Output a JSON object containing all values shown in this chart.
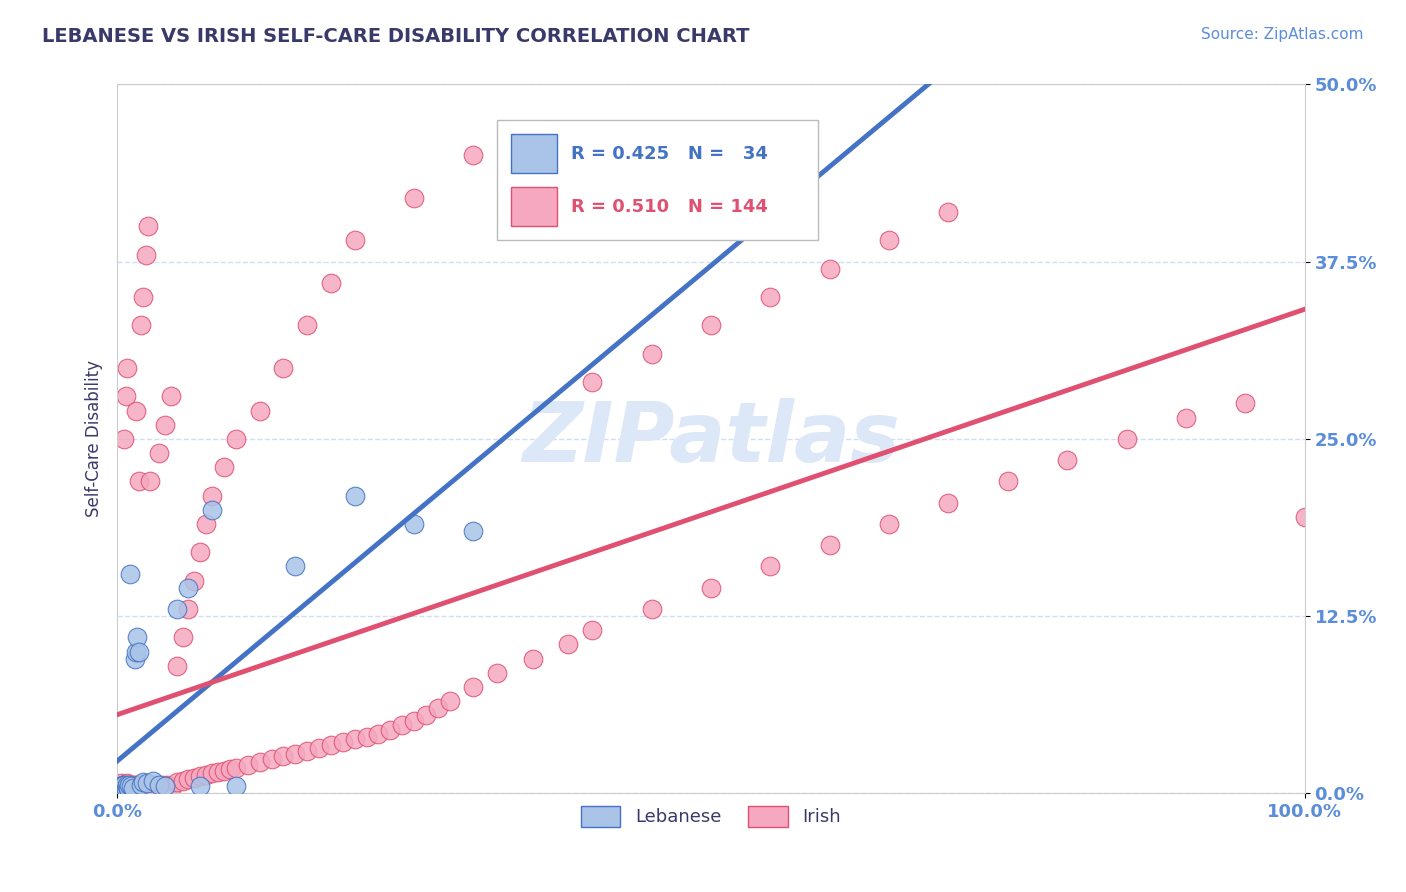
{
  "title": "LEBANESE VS IRISH SELF-CARE DISABILITY CORRELATION CHART",
  "source_text": "Source: ZipAtlas.com",
  "ylabel": "Self-Care Disability",
  "xlim": [
    0,
    1.0
  ],
  "ylim": [
    0,
    0.5
  ],
  "yticks": [
    0.0,
    0.125,
    0.25,
    0.375,
    0.5
  ],
  "ytick_labels": [
    "0.0%",
    "12.5%",
    "25.0%",
    "37.5%",
    "50.0%"
  ],
  "xtick_labels": [
    "0.0%",
    "100.0%"
  ],
  "xticks": [
    0.0,
    1.0
  ],
  "title_color": "#3a3a6a",
  "tick_color": "#5b8dd9",
  "grid_color": "#d0dff5",
  "lebanese_color": "#aac4e8",
  "irish_color": "#f5a8c0",
  "lebanese_line_color": "#4472c4",
  "irish_line_color": "#e05070",
  "watermark_color": "#dce8f8",
  "leb_x": [
    0.002,
    0.003,
    0.004,
    0.005,
    0.005,
    0.006,
    0.006,
    0.007,
    0.008,
    0.008,
    0.009,
    0.01,
    0.011,
    0.012,
    0.013,
    0.015,
    0.016,
    0.017,
    0.018,
    0.02,
    0.022,
    0.025,
    0.03,
    0.035,
    0.04,
    0.05,
    0.06,
    0.07,
    0.08,
    0.1,
    0.15,
    0.2,
    0.25,
    0.3
  ],
  "leb_y": [
    0.005,
    0.004,
    0.003,
    0.005,
    0.006,
    0.004,
    0.006,
    0.003,
    0.005,
    0.006,
    0.004,
    0.006,
    0.155,
    0.005,
    0.004,
    0.095,
    0.1,
    0.11,
    0.1,
    0.006,
    0.008,
    0.007,
    0.009,
    0.006,
    0.005,
    0.13,
    0.145,
    0.005,
    0.2,
    0.005,
    0.16,
    0.21,
    0.19,
    0.185
  ],
  "irish_x": [
    0.001,
    0.002,
    0.002,
    0.003,
    0.003,
    0.004,
    0.004,
    0.005,
    0.005,
    0.006,
    0.006,
    0.007,
    0.007,
    0.008,
    0.008,
    0.009,
    0.009,
    0.01,
    0.01,
    0.011,
    0.011,
    0.012,
    0.012,
    0.013,
    0.013,
    0.014,
    0.014,
    0.015,
    0.015,
    0.016,
    0.016,
    0.017,
    0.017,
    0.018,
    0.018,
    0.019,
    0.02,
    0.021,
    0.022,
    0.023,
    0.024,
    0.025,
    0.026,
    0.027,
    0.028,
    0.029,
    0.03,
    0.031,
    0.032,
    0.033,
    0.034,
    0.035,
    0.036,
    0.037,
    0.038,
    0.039,
    0.04,
    0.041,
    0.042,
    0.043,
    0.044,
    0.045,
    0.05,
    0.055,
    0.06,
    0.065,
    0.07,
    0.075,
    0.08,
    0.085,
    0.09,
    0.095,
    0.1,
    0.11,
    0.12,
    0.13,
    0.14,
    0.15,
    0.16,
    0.17,
    0.18,
    0.19,
    0.2,
    0.21,
    0.22,
    0.23,
    0.24,
    0.25,
    0.26,
    0.27,
    0.28,
    0.3,
    0.32,
    0.35,
    0.38,
    0.4,
    0.45,
    0.5,
    0.55,
    0.6,
    0.65,
    0.7,
    0.75,
    0.8,
    0.85,
    0.9,
    0.95,
    1.0,
    0.006,
    0.007,
    0.008,
    0.016,
    0.018,
    0.02,
    0.022,
    0.024,
    0.026,
    0.028,
    0.035,
    0.04,
    0.045,
    0.05,
    0.055,
    0.06,
    0.065,
    0.07,
    0.075,
    0.08,
    0.09,
    0.1,
    0.12,
    0.14,
    0.16,
    0.18,
    0.2,
    0.25,
    0.3,
    0.4,
    0.45,
    0.5,
    0.55,
    0.6,
    0.65,
    0.7
  ],
  "irish_y": [
    0.005,
    0.003,
    0.006,
    0.004,
    0.007,
    0.003,
    0.005,
    0.004,
    0.006,
    0.003,
    0.005,
    0.004,
    0.006,
    0.003,
    0.007,
    0.004,
    0.005,
    0.003,
    0.006,
    0.004,
    0.005,
    0.003,
    0.006,
    0.004,
    0.005,
    0.003,
    0.006,
    0.004,
    0.005,
    0.003,
    0.006,
    0.004,
    0.005,
    0.003,
    0.006,
    0.004,
    0.005,
    0.003,
    0.006,
    0.004,
    0.005,
    0.003,
    0.006,
    0.004,
    0.005,
    0.003,
    0.006,
    0.004,
    0.005,
    0.003,
    0.006,
    0.004,
    0.005,
    0.003,
    0.006,
    0.004,
    0.005,
    0.003,
    0.006,
    0.004,
    0.005,
    0.003,
    0.008,
    0.009,
    0.01,
    0.011,
    0.012,
    0.013,
    0.014,
    0.015,
    0.016,
    0.017,
    0.018,
    0.02,
    0.022,
    0.024,
    0.026,
    0.028,
    0.03,
    0.032,
    0.034,
    0.036,
    0.038,
    0.04,
    0.042,
    0.045,
    0.048,
    0.051,
    0.055,
    0.06,
    0.065,
    0.075,
    0.085,
    0.095,
    0.105,
    0.115,
    0.13,
    0.145,
    0.16,
    0.175,
    0.19,
    0.205,
    0.22,
    0.235,
    0.25,
    0.265,
    0.275,
    0.195,
    0.25,
    0.28,
    0.3,
    0.27,
    0.22,
    0.33,
    0.35,
    0.38,
    0.4,
    0.22,
    0.24,
    0.26,
    0.28,
    0.09,
    0.11,
    0.13,
    0.15,
    0.17,
    0.19,
    0.21,
    0.23,
    0.25,
    0.27,
    0.3,
    0.33,
    0.36,
    0.39,
    0.42,
    0.45,
    0.29,
    0.31,
    0.33,
    0.35,
    0.37,
    0.39,
    0.41
  ]
}
